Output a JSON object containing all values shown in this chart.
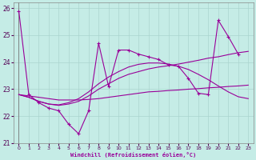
{
  "xlabel": "Windchill (Refroidissement éolien,°C)",
  "bg_color": "#c5ece6",
  "line_color": "#990099",
  "grid_color": "#aad4ce",
  "xlim": [
    -0.5,
    23.5
  ],
  "ylim": [
    21.0,
    26.2
  ],
  "xticks": [
    0,
    1,
    2,
    3,
    4,
    5,
    6,
    7,
    8,
    9,
    10,
    11,
    12,
    13,
    14,
    15,
    16,
    17,
    18,
    19,
    20,
    21,
    22,
    23
  ],
  "yticks": [
    21,
    22,
    23,
    24,
    25,
    26
  ],
  "series1_x": [
    0,
    1,
    2,
    3,
    4,
    5,
    6,
    7,
    8,
    9,
    10,
    11,
    12,
    13,
    14,
    15,
    16,
    17,
    18,
    19,
    20,
    21,
    22
  ],
  "series1_y": [
    25.9,
    22.8,
    22.5,
    22.3,
    22.2,
    21.7,
    21.35,
    22.2,
    24.7,
    23.1,
    24.45,
    24.45,
    24.3,
    24.2,
    24.1,
    23.9,
    23.85,
    23.4,
    22.85,
    22.8,
    25.55,
    24.95,
    24.3
  ],
  "series2_x": [
    0,
    1,
    2,
    3,
    4,
    5,
    6,
    7,
    8,
    9,
    10,
    11,
    12,
    13,
    14,
    15,
    16,
    17,
    18,
    19,
    20,
    21,
    22,
    23
  ],
  "series2_y": [
    22.8,
    22.75,
    22.7,
    22.65,
    22.6,
    22.6,
    22.6,
    22.62,
    22.65,
    22.7,
    22.75,
    22.8,
    22.85,
    22.9,
    22.92,
    22.95,
    22.97,
    23.0,
    23.02,
    23.05,
    23.07,
    23.1,
    23.12,
    23.15
  ],
  "series3_x": [
    0,
    1,
    2,
    3,
    4,
    5,
    6,
    7,
    8,
    9,
    10,
    11,
    12,
    13,
    14,
    15,
    16,
    17,
    18,
    19,
    20,
    21,
    22,
    23
  ],
  "series3_y": [
    22.8,
    22.7,
    22.55,
    22.45,
    22.4,
    22.45,
    22.55,
    22.75,
    23.0,
    23.2,
    23.4,
    23.55,
    23.65,
    23.75,
    23.82,
    23.87,
    23.93,
    24.0,
    24.07,
    24.15,
    24.2,
    24.28,
    24.35,
    24.4
  ],
  "series4_x": [
    0,
    1,
    2,
    3,
    4,
    5,
    6,
    7,
    8,
    9,
    10,
    11,
    12,
    13,
    14,
    15,
    16,
    17,
    18,
    19,
    20,
    21,
    22,
    23
  ],
  "series4_y": [
    22.8,
    22.7,
    22.55,
    22.45,
    22.42,
    22.5,
    22.65,
    22.9,
    23.2,
    23.45,
    23.65,
    23.82,
    23.92,
    23.97,
    23.97,
    23.93,
    23.85,
    23.73,
    23.55,
    23.35,
    23.12,
    22.9,
    22.72,
    22.65
  ]
}
